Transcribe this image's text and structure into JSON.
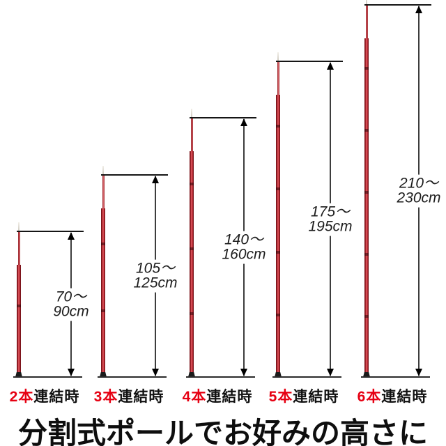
{
  "title": "分割式ポールでお好みの高さに",
  "colors": {
    "accent_red": "#e60012",
    "pole_red": "#b92630",
    "text_dark": "#111111",
    "arrow_gray": "#3d3d3d"
  },
  "poles": [
    {
      "sections": 2,
      "height_cm_min": 70,
      "height_cm_max": 90,
      "range_line1": "70〜",
      "range_line2": "90cm",
      "label_red": "2本",
      "label_black": "連結時"
    },
    {
      "sections": 3,
      "height_cm_min": 105,
      "height_cm_max": 125,
      "range_line1": "105〜",
      "range_line2": "125cm",
      "label_red": "3本",
      "label_black": "連結時"
    },
    {
      "sections": 4,
      "height_cm_min": 140,
      "height_cm_max": 160,
      "range_line1": "140〜",
      "range_line2": "160cm",
      "label_red": "4本",
      "label_black": "連結時"
    },
    {
      "sections": 5,
      "height_cm_min": 175,
      "height_cm_max": 195,
      "range_line1": "175〜",
      "range_line2": "195cm",
      "label_red": "5本",
      "label_black": "連結時"
    },
    {
      "sections": 6,
      "height_cm_min": 210,
      "height_cm_max": 230,
      "range_line1": "210〜",
      "range_line2": "230cm",
      "label_red": "6本",
      "label_black": "連結時"
    }
  ]
}
